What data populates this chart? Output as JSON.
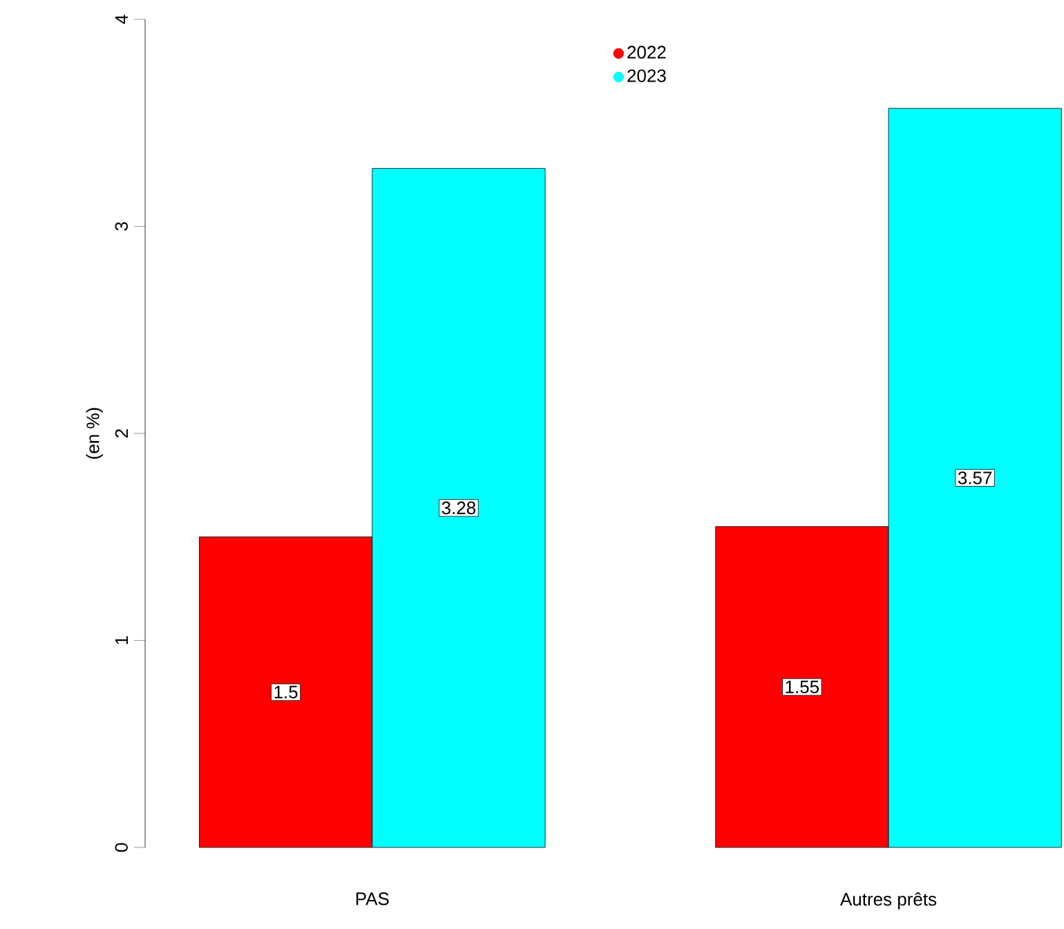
{
  "chart_data": {
    "type": "bar",
    "ylabel": "(en %)",
    "categories": [
      "PAS",
      "Autres prêts"
    ],
    "series": [
      {
        "name": "2022",
        "color": "#ff0000",
        "values": [
          1.5,
          1.55
        ]
      },
      {
        "name": "2023",
        "color": "#00ffff",
        "values": [
          3.28,
          3.57
        ]
      }
    ],
    "ylim": [
      0,
      4
    ],
    "yticks": [
      0,
      1,
      2,
      3,
      4
    ],
    "data_labels": true,
    "legend": "top",
    "grid": false
  }
}
